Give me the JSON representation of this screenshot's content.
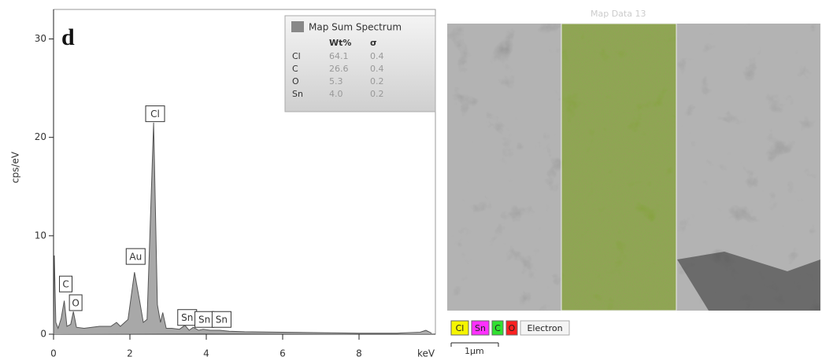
{
  "chart_data": {
    "type": "line",
    "panel_label": "d",
    "ylabel": "cps/eV",
    "xlabel": "keV",
    "x": [
      0,
      0.02,
      0.06,
      0.12,
      0.2,
      0.28,
      0.35,
      0.45,
      0.52,
      0.6,
      0.8,
      1.0,
      1.2,
      1.5,
      1.65,
      1.75,
      1.95,
      2.12,
      2.25,
      2.35,
      2.45,
      2.62,
      2.72,
      2.8,
      2.86,
      2.95,
      3.1,
      3.3,
      3.44,
      3.55,
      3.66,
      3.8,
      3.92,
      4.1,
      4.35,
      4.6,
      5.0,
      6.0,
      7.0,
      8.0,
      9.0,
      9.6,
      9.75,
      9.9
    ],
    "values": [
      0,
      8,
      1.2,
      0.6,
      1.6,
      3.4,
      0.8,
      1.0,
      2.3,
      0.7,
      0.6,
      0.7,
      0.8,
      0.8,
      1.2,
      0.8,
      1.5,
      6.3,
      3.5,
      1.2,
      1.5,
      21.5,
      3.0,
      1.2,
      2.2,
      0.6,
      0.6,
      0.5,
      0.9,
      0.4,
      0.7,
      0.4,
      0.5,
      0.4,
      0.4,
      0.3,
      0.25,
      0.2,
      0.15,
      0.1,
      0.1,
      0.2,
      0.4,
      0.1
    ],
    "color": "#555555",
    "fill": "#a8a8a8",
    "xlim": [
      0,
      10
    ],
    "ylim": [
      0,
      33
    ],
    "xticks": [
      0,
      2,
      4,
      6,
      8
    ],
    "yticks": [
      0,
      10,
      20,
      30
    ],
    "annotations": [
      {
        "text": "C",
        "x": 0.32,
        "y": 5.1
      },
      {
        "text": "O",
        "x": 0.58,
        "y": 3.2
      },
      {
        "text": "Au",
        "x": 2.15,
        "y": 7.9
      },
      {
        "text": "Cl",
        "x": 2.66,
        "y": 22.4
      },
      {
        "text": "Sn",
        "x": 3.5,
        "y": 1.7
      },
      {
        "text": "Sn",
        "x": 3.95,
        "y": 1.5
      },
      {
        "text": "Sn",
        "x": 4.4,
        "y": 1.5
      }
    ],
    "table": {
      "title": "Map Sum Spectrum",
      "columns": [
        "Wt%",
        "σ"
      ],
      "rows": [
        [
          "Cl",
          "64.1",
          "0.4"
        ],
        [
          "C",
          "26.6",
          "0.4"
        ],
        [
          "O",
          "5.3",
          "0.2"
        ],
        [
          "Sn",
          "4.0",
          "0.2"
        ]
      ]
    }
  },
  "image": {
    "title": "Map Data 13",
    "legend": [
      {
        "label": "Cl",
        "color": "#f5f500"
      },
      {
        "label": "Sn",
        "color": "#ff30ff"
      },
      {
        "label": "C",
        "color": "#30e030"
      },
      {
        "label": "O",
        "color": "#ff2020"
      }
    ],
    "electron": "Electron",
    "scale_bar": "1μm"
  }
}
